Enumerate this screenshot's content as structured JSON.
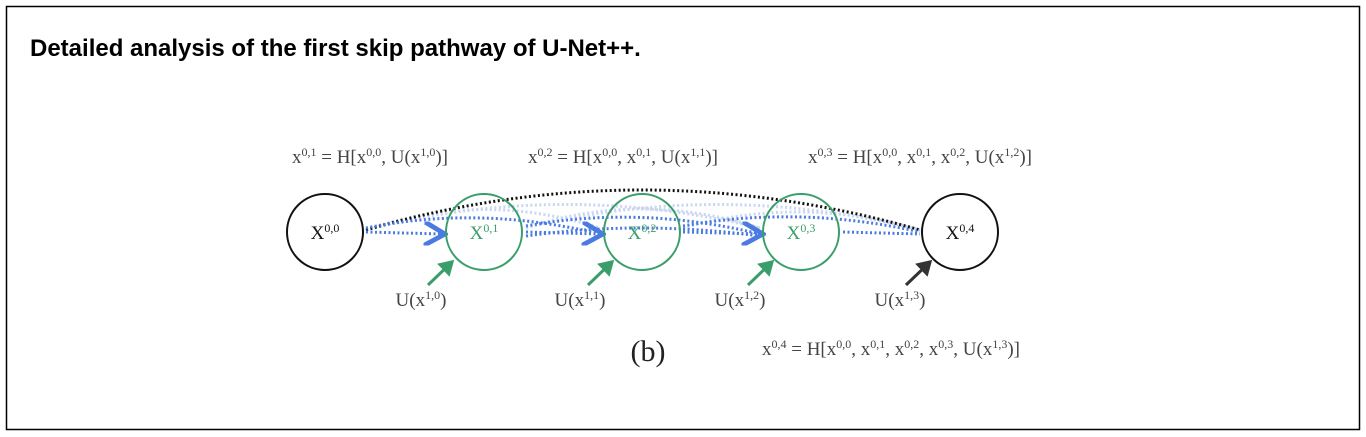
{
  "header": {
    "title": "Detailed analysis of the first skip pathway of U-Net++."
  },
  "equations": [
    [
      {
        "text": "x"
      },
      {
        "sup": "0,1"
      },
      {
        "text": " = H[x"
      },
      {
        "sup": "0,0"
      },
      {
        "text": ", U(x"
      },
      {
        "sup": "1,0"
      },
      {
        "text": ")]"
      }
    ],
    [
      {
        "text": "x"
      },
      {
        "sup": "0,2"
      },
      {
        "text": " = H[x"
      },
      {
        "sup": "0,0"
      },
      {
        "text": ", x"
      },
      {
        "sup": "0,1"
      },
      {
        "text": ", U(x"
      },
      {
        "sup": "1,1"
      },
      {
        "text": ")]"
      }
    ],
    [
      {
        "text": "x"
      },
      {
        "sup": "0,3"
      },
      {
        "text": " = H[x"
      },
      {
        "sup": "0,0"
      },
      {
        "text": ", x"
      },
      {
        "sup": "0,1"
      },
      {
        "text": ", x"
      },
      {
        "sup": "0,2"
      },
      {
        "text": ", U(x"
      },
      {
        "sup": "1,2"
      },
      {
        "text": ")]"
      }
    ],
    [
      {
        "text": "x"
      },
      {
        "sup": "0,4"
      },
      {
        "text": " = H[x"
      },
      {
        "sup": "0,0"
      },
      {
        "text": ", x"
      },
      {
        "sup": "0,1"
      },
      {
        "text": ", x"
      },
      {
        "sup": "0,2"
      },
      {
        "text": ", x"
      },
      {
        "sup": "0,3"
      },
      {
        "text": ", U(x"
      },
      {
        "sup": "1,3"
      },
      {
        "text": ")]"
      }
    ]
  ],
  "nodes": [
    [
      {
        "text": "X"
      },
      {
        "sup": "0,0"
      }
    ],
    [
      {
        "text": "X"
      },
      {
        "sup": "0,1"
      }
    ],
    [
      {
        "text": "X"
      },
      {
        "sup": "0,2"
      }
    ],
    [
      {
        "text": "X"
      },
      {
        "sup": "0,3"
      }
    ],
    [
      {
        "text": "X"
      },
      {
        "sup": "0,4"
      }
    ]
  ],
  "inputs": [
    [
      {
        "text": "U(x"
      },
      {
        "sup": "1,0"
      },
      {
        "text": ")"
      }
    ],
    [
      {
        "text": "U(x"
      },
      {
        "sup": "1,1"
      },
      {
        "text": ")"
      }
    ],
    [
      {
        "text": "U(x"
      },
      {
        "sup": "1,2"
      },
      {
        "text": ")"
      }
    ],
    [
      {
        "text": "U(x"
      },
      {
        "sup": "1,3"
      },
      {
        "text": ")"
      }
    ]
  ],
  "caption": "(b)"
}
